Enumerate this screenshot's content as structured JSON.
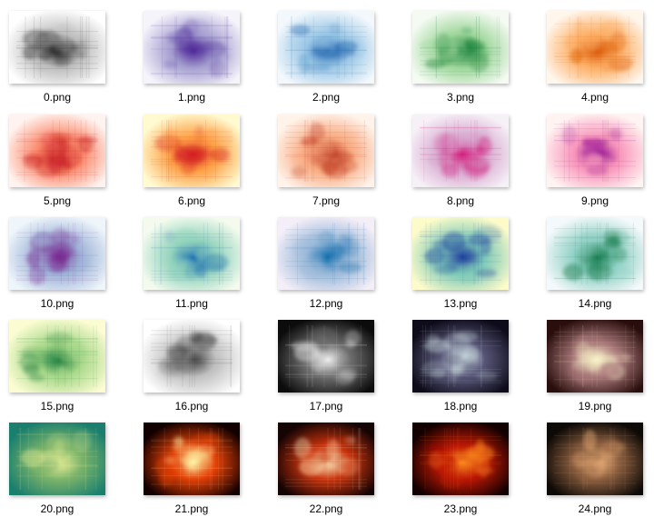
{
  "files": [
    {
      "name": "0.png",
      "palette": [
        "#ffffff",
        "#bdbdbd",
        "#202020"
      ],
      "dark_bg": false
    },
    {
      "name": "1.png",
      "palette": [
        "#f6f4fb",
        "#a59fd0",
        "#4f2a98"
      ],
      "dark_bg": false
    },
    {
      "name": "2.png",
      "palette": [
        "#f3f8fd",
        "#9cc8e6",
        "#1a62ae"
      ],
      "dark_bg": false
    },
    {
      "name": "3.png",
      "palette": [
        "#f5fbf3",
        "#9ed69a",
        "#16803a"
      ],
      "dark_bg": false
    },
    {
      "name": "4.png",
      "palette": [
        "#fff6ec",
        "#fdb066",
        "#db5a0a"
      ],
      "dark_bg": false
    },
    {
      "name": "5.png",
      "palette": [
        "#fff3ef",
        "#fb8a6c",
        "#c3131c"
      ],
      "dark_bg": false
    },
    {
      "name": "6.png",
      "palette": [
        "#fffad0",
        "#fea145",
        "#d41e23"
      ],
      "dark_bg": false
    },
    {
      "name": "7.png",
      "palette": [
        "#fff3ea",
        "#f8aa80",
        "#b72b14"
      ],
      "dark_bg": false
    },
    {
      "name": "8.png",
      "palette": [
        "#f6f0f7",
        "#d7a8cf",
        "#d3207e"
      ],
      "dark_bg": false
    },
    {
      "name": "9.png",
      "palette": [
        "#fff4f2",
        "#f896bb",
        "#8f0a91"
      ],
      "dark_bg": false
    },
    {
      "name": "10.png",
      "palette": [
        "#eef5fb",
        "#9fb4d8",
        "#7a2b92"
      ],
      "dark_bg": false
    },
    {
      "name": "11.png",
      "palette": [
        "#f4fbee",
        "#92d3bd",
        "#1b6fb3"
      ],
      "dark_bg": false
    },
    {
      "name": "12.png",
      "palette": [
        "#f4eef8",
        "#9cbad9",
        "#1270ae"
      ],
      "dark_bg": false
    },
    {
      "name": "13.png",
      "palette": [
        "#fcfbc9",
        "#7ecab8",
        "#2241a0"
      ],
      "dark_bg": false
    },
    {
      "name": "14.png",
      "palette": [
        "#f4f9fb",
        "#8fd0c4",
        "#137a4a"
      ],
      "dark_bg": false
    },
    {
      "name": "15.png",
      "palette": [
        "#fbfcd2",
        "#a9d88a",
        "#1d7e3e"
      ],
      "dark_bg": false
    },
    {
      "name": "16.png",
      "palette": [
        "#ffffff",
        "#c0c0c0",
        "#3e3e3e"
      ],
      "dark_bg": false
    },
    {
      "name": "17.png",
      "palette": [
        "#0c0c0c",
        "#6d6d6d",
        "#eeeeee"
      ],
      "dark_bg": true
    },
    {
      "name": "18.png",
      "palette": [
        "#0e0c1a",
        "#575577",
        "#dcf0f0"
      ],
      "dark_bg": true
    },
    {
      "name": "19.png",
      "palette": [
        "#2a0e0d",
        "#a9787a",
        "#f8f2c8"
      ],
      "dark_bg": true
    },
    {
      "name": "20.png",
      "palette": [
        "#1b7f6e",
        "#7cb46a",
        "#f4f49a"
      ],
      "dark_bg": true
    },
    {
      "name": "21.png",
      "palette": [
        "#120000",
        "#e33f07",
        "#fff3a4"
      ],
      "dark_bg": true
    },
    {
      "name": "22.png",
      "palette": [
        "#150404",
        "#c9320c",
        "#fff5c6"
      ],
      "dark_bg": true
    },
    {
      "name": "23.png",
      "palette": [
        "#120000",
        "#bd1705",
        "#fc8a1e"
      ],
      "dark_bg": true
    },
    {
      "name": "24.png",
      "palette": [
        "#0d0906",
        "#8a5e3f",
        "#f2b47c"
      ],
      "dark_bg": true
    }
  ]
}
